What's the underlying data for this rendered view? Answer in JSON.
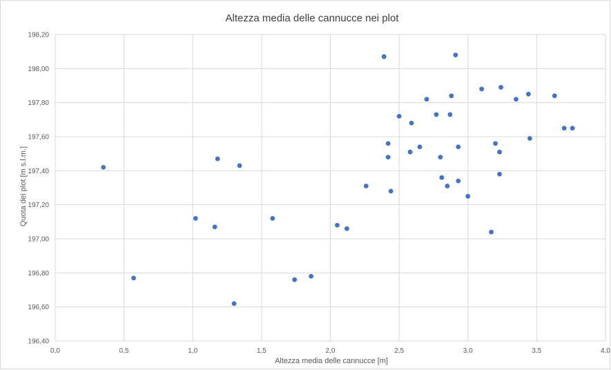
{
  "chart_data": {
    "type": "scatter",
    "title": "Altezza media delle cannucce nei plot",
    "xlabel": "Altezza media delle cannucce [m]",
    "ylabel": "Quota dei plot [m s.l.m.]",
    "xlim": [
      0,
      4
    ],
    "ylim": [
      196.4,
      198.2
    ],
    "x_ticks": [
      "0,0",
      "0,5",
      "1,0",
      "1,5",
      "2,0",
      "2,5",
      "3,0",
      "3,5",
      "4,0"
    ],
    "y_ticks": [
      "196,40",
      "196,60",
      "196,80",
      "197,00",
      "197,20",
      "197,40",
      "197,60",
      "197,80",
      "198,00",
      "198,20"
    ],
    "grid": true,
    "legend": "none",
    "marker_color": "#4472c4",
    "series": [
      {
        "points": [
          [
            0.35,
            197.42
          ],
          [
            0.57,
            196.77
          ],
          [
            1.02,
            197.12
          ],
          [
            1.16,
            197.07
          ],
          [
            1.18,
            197.47
          ],
          [
            1.3,
            196.62
          ],
          [
            1.34,
            197.43
          ],
          [
            1.58,
            197.12
          ],
          [
            1.74,
            196.76
          ],
          [
            1.86,
            196.78
          ],
          [
            2.05,
            197.08
          ],
          [
            2.12,
            197.06
          ],
          [
            2.26,
            197.31
          ],
          [
            2.39,
            198.07
          ],
          [
            2.42,
            197.56
          ],
          [
            2.42,
            197.48
          ],
          [
            2.44,
            197.28
          ],
          [
            2.5,
            197.72
          ],
          [
            2.58,
            197.51
          ],
          [
            2.59,
            197.68
          ],
          [
            2.65,
            197.54
          ],
          [
            2.7,
            197.82
          ],
          [
            2.77,
            197.73
          ],
          [
            2.8,
            197.48
          ],
          [
            2.81,
            197.36
          ],
          [
            2.85,
            197.31
          ],
          [
            2.87,
            197.73
          ],
          [
            2.88,
            197.84
          ],
          [
            2.91,
            198.08
          ],
          [
            2.93,
            197.54
          ],
          [
            2.93,
            197.34
          ],
          [
            3.0,
            197.25
          ],
          [
            3.1,
            197.88
          ],
          [
            3.17,
            197.04
          ],
          [
            3.2,
            197.56
          ],
          [
            3.23,
            197.51
          ],
          [
            3.23,
            197.38
          ],
          [
            3.24,
            197.89
          ],
          [
            3.35,
            197.82
          ],
          [
            3.44,
            197.85
          ],
          [
            3.45,
            197.59
          ],
          [
            3.63,
            197.84
          ],
          [
            3.7,
            197.65
          ],
          [
            3.76,
            197.65
          ]
        ]
      }
    ]
  }
}
